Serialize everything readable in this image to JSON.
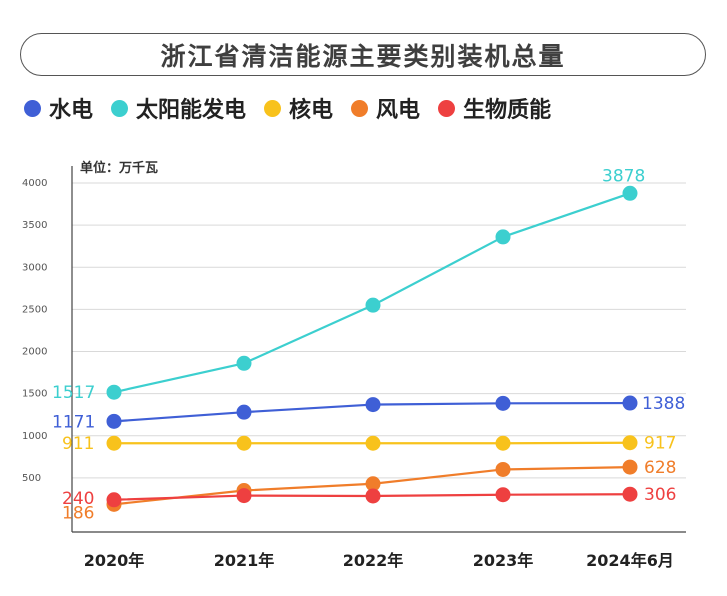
{
  "title": "浙江省清洁能源主要类别装机总量",
  "chart_data": {
    "type": "line",
    "unit": "单位：万千瓦",
    "categories": [
      "2020年",
      "2021年",
      "2022年",
      "2023年",
      "2024年6月"
    ],
    "y_ticks": [
      500,
      1000,
      1500,
      2000,
      2500,
      3000,
      3500,
      4000
    ],
    "ylim": [
      0,
      4000
    ],
    "grid": true,
    "legend_position": "top",
    "series": [
      {
        "name": "水电",
        "color": "#3f5fd6",
        "values": [
          1171,
          1280,
          1370,
          1385,
          1388
        ],
        "labels": {
          "0": "1171",
          "4": "1388"
        }
      },
      {
        "name": "太阳能发电",
        "color": "#3ccfcf",
        "values": [
          1517,
          1860,
          2550,
          3360,
          3878
        ],
        "labels": {
          "0": "1517",
          "4": "3878"
        }
      },
      {
        "name": "核电",
        "color": "#f8c21c",
        "values": [
          911,
          911,
          911,
          911,
          917
        ],
        "labels": {
          "0": "911",
          "4": "917"
        }
      },
      {
        "name": "风电",
        "color": "#f07d2a",
        "values": [
          186,
          350,
          430,
          600,
          628
        ],
        "labels": {
          "0": "186",
          "4": "628"
        }
      },
      {
        "name": "生物质能",
        "color": "#ee4040",
        "values": [
          240,
          290,
          285,
          300,
          306
        ],
        "labels": {
          "0": "240",
          "4": "306"
        }
      }
    ]
  }
}
